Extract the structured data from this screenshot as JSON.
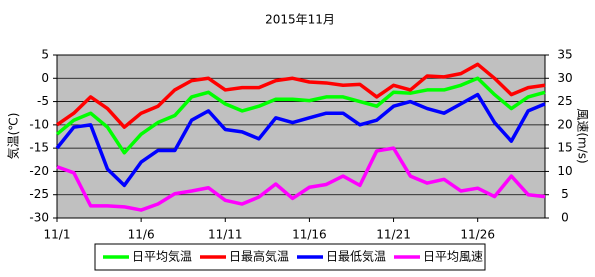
{
  "chart_data": {
    "type": "line",
    "title": "2015年11月",
    "y_label": "気温(℃)",
    "y2_label": "風速(m/s)",
    "categories": [
      "11/1",
      null,
      null,
      null,
      null,
      "11/6",
      null,
      null,
      null,
      null,
      "11/11",
      null,
      null,
      null,
      null,
      "11/16",
      null,
      null,
      null,
      null,
      "11/21",
      null,
      null,
      null,
      null,
      "11/26",
      null,
      null,
      null,
      null
    ],
    "ylim": [
      -30,
      5
    ],
    "yticks": [
      -30,
      -25,
      -20,
      -15,
      -10,
      -5,
      0,
      5
    ],
    "y2lim": [
      0,
      35
    ],
    "y2ticks": [
      0,
      5,
      10,
      15,
      20,
      25,
      30,
      35
    ],
    "grid": true,
    "legend": "bottom",
    "series": [
      {
        "name": "日平均気温",
        "color": "#00ff00",
        "values": [
          -12,
          -9,
          -7.5,
          -10.5,
          -16,
          -12,
          -9.5,
          -8,
          -4,
          -3,
          -5.5,
          -7,
          -6,
          -4.5,
          -4.5,
          -4.8,
          -4,
          -4,
          -5,
          -6,
          -3,
          -3.2,
          -2.5,
          -2.5,
          -1.5,
          0,
          -3.5,
          -6.5,
          -4,
          -3
        ]
      },
      {
        "name": "日最高気温",
        "color": "#ff0000",
        "values": [
          -10,
          -7.5,
          -4,
          -6.5,
          -10.5,
          -7.5,
          -6,
          -2.5,
          -0.5,
          0,
          -2.5,
          -2,
          -2,
          -0.5,
          0,
          -0.8,
          -1,
          -1.5,
          -1.3,
          -4,
          -1.5,
          -2.5,
          0.5,
          0.3,
          1,
          3,
          0,
          -3.5,
          -2,
          -1.5
        ]
      },
      {
        "name": "日最低気温",
        "color": "#0000ff",
        "values": [
          -15,
          -10.5,
          -10,
          -19.5,
          -23,
          -18,
          -15.5,
          -15.5,
          -9,
          -7,
          -11,
          -11.5,
          -13,
          -8.5,
          -9.5,
          -8.5,
          -7.5,
          -7.5,
          -10,
          -9,
          -6,
          -5,
          -6.5,
          -7.5,
          -5.5,
          -3.5,
          -9.5,
          -13.5,
          -7,
          -5.5
        ]
      },
      {
        "name": "日平均風速",
        "color": "#ff00ff",
        "axis": "y2",
        "values": [
          11,
          9.7,
          2.6,
          2.6,
          2.4,
          1.7,
          3,
          5.2,
          5.8,
          6.5,
          3.8,
          3,
          4.5,
          7.3,
          4.2,
          6.6,
          7.2,
          9,
          7,
          14.4,
          15,
          9,
          7.5,
          8.3,
          5.8,
          6.4,
          4.6,
          9,
          5,
          4.6
        ]
      }
    ]
  }
}
